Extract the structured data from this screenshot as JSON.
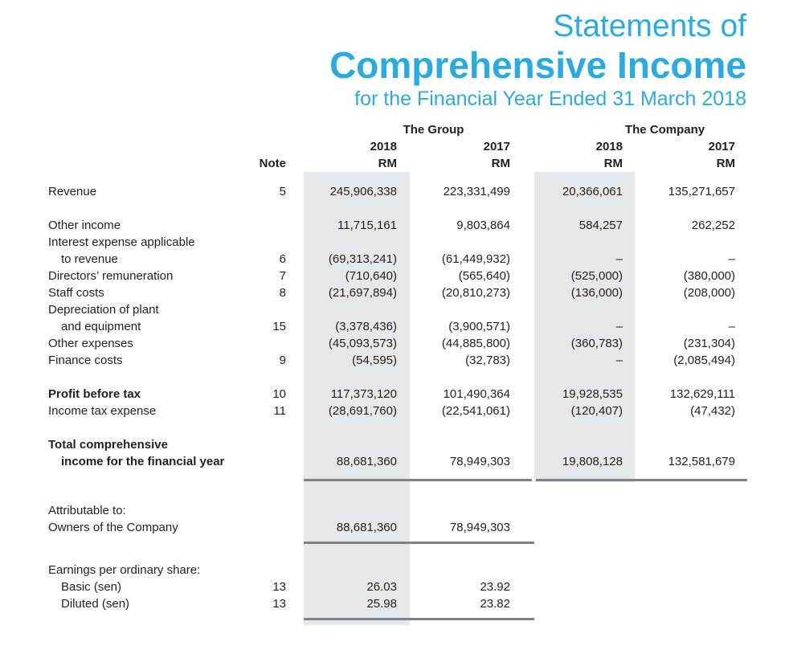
{
  "page": {
    "title_line1": "Statements of",
    "title_line2": "Comprehensive Income",
    "title_line3": "for the Financial Year Ended 31 March 2018",
    "accent_color": "#29abe2"
  },
  "table": {
    "group_header": "The Group",
    "company_header": "The Company",
    "note_header": "Note",
    "currency_label": "RM",
    "years": {
      "g2018": "2018",
      "g2017": "2017",
      "c2018": "2018",
      "c2017": "2017"
    },
    "rows": [
      {
        "label": "Revenue",
        "note": "5",
        "g2018": "245,906,338",
        "g2017": "223,331,499",
        "c2018": "20,366,061",
        "c2017": "135,271,657"
      },
      {
        "label": "Other income",
        "g2018": "11,715,161",
        "g2017": "9,803,864",
        "c2018": "584,257",
        "c2017": "262,252"
      },
      {
        "label": "Interest expense applicable"
      },
      {
        "label": "to revenue",
        "note": "6",
        "g2018": "(69,313,241)",
        "g2017": "(61,449,932)",
        "c2018": "–",
        "c2017": "–"
      },
      {
        "label": "Directors’ remuneration",
        "note": "7",
        "g2018": "(710,640)",
        "g2017": "(565,640)",
        "c2018": "(525,000)",
        "c2017": "(380,000)"
      },
      {
        "label": "Staff costs",
        "note": "8",
        "g2018": "(21,697,894)",
        "g2017": "(20,810,273)",
        "c2018": "(136,000)",
        "c2017": "(208,000)"
      },
      {
        "label": "Depreciation of plant"
      },
      {
        "label": "and equipment",
        "note": "15",
        "g2018": "(3,378,436)",
        "g2017": "(3,900,571)",
        "c2018": "–",
        "c2017": "–"
      },
      {
        "label": "Other expenses",
        "g2018": "(45,093,573)",
        "g2017": "(44,885,800)",
        "c2018": "(360,783)",
        "c2017": "(231,304)"
      },
      {
        "label": "Finance costs",
        "note": "9",
        "g2018": "(54,595)",
        "g2017": "(32,783)",
        "c2018": "–",
        "c2017": "(2,085,494)"
      },
      {
        "label": "Profit before tax",
        "note": "10",
        "g2018": "117,373,120",
        "g2017": "101,490,364",
        "c2018": "19,928,535",
        "c2017": "132,629,111"
      },
      {
        "label": "Income tax expense",
        "note": "11",
        "g2018": "(28,691,760)",
        "g2017": "(22,541,061)",
        "c2018": "(120,407)",
        "c2017": "(47,432)"
      },
      {
        "label": "Total comprehensive"
      },
      {
        "label": "income for the financial year",
        "g2018": "88,681,360",
        "g2017": "78,949,303",
        "c2018": "19,808,128",
        "c2017": "132,581,679"
      },
      {
        "label": "Attributable to:"
      },
      {
        "label": "Owners of the Company",
        "g2018": "88,681,360",
        "g2017": "78,949,303"
      },
      {
        "label": "Earnings per ordinary share:"
      },
      {
        "label": "Basic (sen)",
        "note": "13",
        "g2018": "26.03",
        "g2017": "23.92"
      },
      {
        "label": "Diluted (sen)",
        "note": "13",
        "g2018": "25.98",
        "g2017": "23.82"
      }
    ]
  }
}
